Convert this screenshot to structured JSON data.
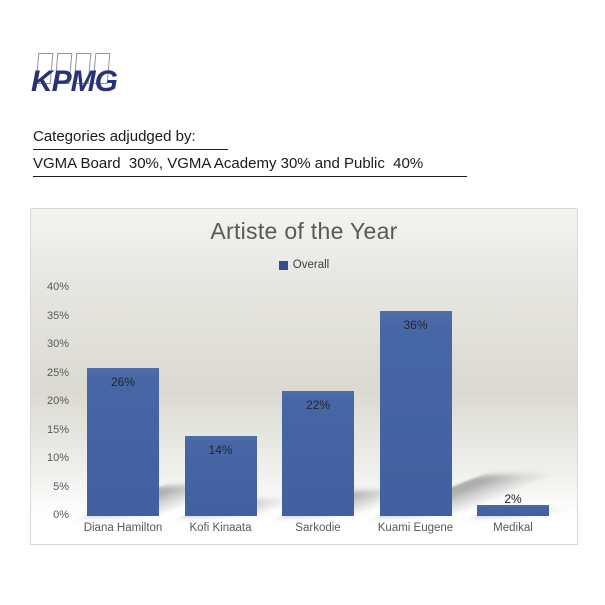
{
  "brand": {
    "name": "KPMG"
  },
  "header": {
    "line1": "Categories adjudged by:",
    "line2": "VGMA Board  30%, VGMA Academy 30% and Public  40%"
  },
  "chart_data": {
    "type": "bar",
    "title": "Artiste of the Year",
    "legend": {
      "position": "top",
      "entries": [
        "Overall"
      ]
    },
    "categories": [
      "Diana Hamilton",
      "Kofi Kinaata",
      "Sarkodie",
      "Kuami Eugene",
      "Medikal"
    ],
    "series": [
      {
        "name": "Overall",
        "values": [
          26,
          14,
          22,
          36,
          2
        ]
      }
    ],
    "data_labels": [
      "26%",
      "14%",
      "22%",
      "36%",
      "2%"
    ],
    "xlabel": "",
    "ylabel": "",
    "ylim": [
      0,
      40
    ],
    "ytick_step": 5,
    "yticks": [
      "0%",
      "5%",
      "10%",
      "15%",
      "20%",
      "25%",
      "30%",
      "35%",
      "40%"
    ],
    "grid": false,
    "colors": {
      "bar": "#4565a4",
      "legend_marker": "#31508f",
      "title_text": "#595959",
      "axis_text": "#595959",
      "brand_navy": "#283377"
    }
  }
}
